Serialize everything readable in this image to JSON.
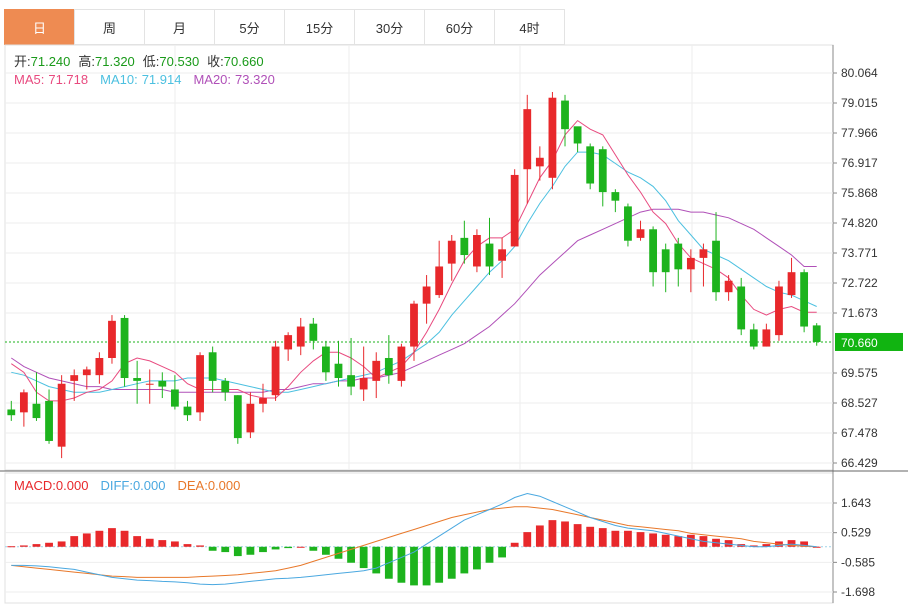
{
  "tabs": [
    "日",
    "周",
    "月",
    "5分",
    "15分",
    "30分",
    "60分",
    "4时"
  ],
  "active_tab": 0,
  "ohlc": {
    "open_label": "开:",
    "open": "71.240",
    "high_label": "高:",
    "high": "71.320",
    "low_label": "低:",
    "low": "70.530",
    "close_label": "收:",
    "close": "70.660"
  },
  "ma": {
    "ma5_label": "MA5:",
    "ma5": "71.718",
    "ma10_label": "MA10:",
    "ma10": "71.914",
    "ma20_label": "MA20:",
    "ma20": "73.320"
  },
  "macd_info": {
    "macd_label": "MACD:",
    "macd": "0.000",
    "diff_label": "DIFF:",
    "diff": "0.000",
    "dea_label": "DEA:",
    "dea": "0.000"
  },
  "colors": {
    "up": "#e8282b",
    "down": "#1db31d",
    "ma5": "#e84a7f",
    "ma10": "#4cc0e0",
    "ma20": "#b050b8",
    "diff": "#4aa8e0",
    "dea": "#e8782a",
    "current_line": "#1db31d",
    "current_label_bg": "#11b411",
    "ohlc_value": "#1a9a1a"
  },
  "chart_data": {
    "type": "candlestick",
    "price_axis_ticks": [
      "80.064",
      "79.015",
      "77.966",
      "76.917",
      "75.868",
      "74.820",
      "73.771",
      "72.722",
      "71.673",
      "70.660",
      "69.575",
      "68.527",
      "67.478",
      "66.429"
    ],
    "current_price": "70.660",
    "price_range": [
      66.429,
      80.064
    ],
    "macd_axis_ticks": [
      "1.643",
      "0.529",
      "-0.585",
      "-1.698"
    ],
    "macd_range": [
      -1.698,
      1.643
    ],
    "candles": [
      [
        68.3,
        68.1,
        68.6,
        67.9
      ],
      [
        68.2,
        68.9,
        69.0,
        67.7
      ],
      [
        68.5,
        68.0,
        69.6,
        67.9
      ],
      [
        68.6,
        67.2,
        69.0,
        67.1
      ],
      [
        67.0,
        69.2,
        69.5,
        66.6
      ],
      [
        69.3,
        69.5,
        69.7,
        68.6
      ],
      [
        69.5,
        69.7,
        69.8,
        69.0
      ],
      [
        69.5,
        70.1,
        70.3,
        69.2
      ],
      [
        70.1,
        71.4,
        71.6,
        69.9
      ],
      [
        71.5,
        69.4,
        71.6,
        69.1
      ],
      [
        69.4,
        69.3,
        70.0,
        68.5
      ],
      [
        69.2,
        69.2,
        69.7,
        68.5
      ],
      [
        69.3,
        69.1,
        69.6,
        68.7
      ],
      [
        69.0,
        68.4,
        69.5,
        68.3
      ],
      [
        68.4,
        68.1,
        68.6,
        67.9
      ],
      [
        68.2,
        70.2,
        70.3,
        67.9
      ],
      [
        70.3,
        69.3,
        70.5,
        68.9
      ],
      [
        69.3,
        68.9,
        69.4,
        68.6
      ],
      [
        68.8,
        67.3,
        68.8,
        67.1
      ],
      [
        67.5,
        68.5,
        68.9,
        67.3
      ],
      [
        68.5,
        68.7,
        69.2,
        68.2
      ],
      [
        68.8,
        70.5,
        70.7,
        68.6
      ],
      [
        70.4,
        70.9,
        71.0,
        70.0
      ],
      [
        70.5,
        71.2,
        71.5,
        70.2
      ],
      [
        71.3,
        70.7,
        71.5,
        70.4
      ],
      [
        70.5,
        69.6,
        70.7,
        69.3
      ],
      [
        69.9,
        69.4,
        70.7,
        69.1
      ],
      [
        69.5,
        69.1,
        70.8,
        68.8
      ],
      [
        69.0,
        69.4,
        70.5,
        68.6
      ],
      [
        69.3,
        70.0,
        70.3,
        68.7
      ],
      [
        70.1,
        69.5,
        70.9,
        69.2
      ],
      [
        69.3,
        70.5,
        70.6,
        69.1
      ],
      [
        70.5,
        72.0,
        72.1,
        70.0
      ],
      [
        72.0,
        72.6,
        73.0,
        71.3
      ],
      [
        72.3,
        73.3,
        74.2,
        72.2
      ],
      [
        73.4,
        74.2,
        74.4,
        72.8
      ],
      [
        74.3,
        73.7,
        74.9,
        73.4
      ],
      [
        73.3,
        74.4,
        74.6,
        73.1
      ],
      [
        74.1,
        73.3,
        75.0,
        73.0
      ],
      [
        73.5,
        73.9,
        74.3,
        72.9
      ],
      [
        74.0,
        76.5,
        76.7,
        74.0
      ],
      [
        76.7,
        78.8,
        79.3,
        75.5
      ],
      [
        76.8,
        77.1,
        77.5,
        76.3
      ],
      [
        76.4,
        79.2,
        79.4,
        76.0
      ],
      [
        79.1,
        78.1,
        79.3,
        77.5
      ],
      [
        78.2,
        77.6,
        78.0,
        77.3
      ],
      [
        77.5,
        76.2,
        77.6,
        76.0
      ],
      [
        77.4,
        75.9,
        77.5,
        75.4
      ],
      [
        75.9,
        75.6,
        76.0,
        75.2
      ],
      [
        75.4,
        74.2,
        75.5,
        74.0
      ],
      [
        74.3,
        74.6,
        74.9,
        74.2
      ],
      [
        74.6,
        73.1,
        74.7,
        72.6
      ],
      [
        73.9,
        73.1,
        74.1,
        72.4
      ],
      [
        74.1,
        73.2,
        74.3,
        72.6
      ],
      [
        73.2,
        73.6,
        73.9,
        72.4
      ],
      [
        73.6,
        73.9,
        74.1,
        72.6
      ],
      [
        74.2,
        72.4,
        75.2,
        72.1
      ],
      [
        72.4,
        72.8,
        73.0,
        72.1
      ],
      [
        72.6,
        71.1,
        72.9,
        70.9
      ],
      [
        71.1,
        70.5,
        71.3,
        70.4
      ],
      [
        70.5,
        71.1,
        71.3,
        70.5
      ],
      [
        70.9,
        72.6,
        72.8,
        70.7
      ],
      [
        72.3,
        73.1,
        73.6,
        72.2
      ],
      [
        73.1,
        71.2,
        73.2,
        71.0
      ],
      [
        71.24,
        70.66,
        71.32,
        70.53
      ]
    ],
    "ma5": [
      69.9,
      69.6,
      68.9,
      68.6,
      68.6,
      68.7,
      68.9,
      69.0,
      69.3,
      69.9,
      70.1,
      70.0,
      69.8,
      69.6,
      69.2,
      69.0,
      69.0,
      69.0,
      69.0,
      68.8,
      68.7,
      68.7,
      69.1,
      69.6,
      70.0,
      70.3,
      70.3,
      70.1,
      69.8,
      69.4,
      69.6,
      69.8,
      70.3,
      71.0,
      71.8,
      72.7,
      73.5,
      74.0,
      74.3,
      74.3,
      74.6,
      75.5,
      76.4,
      77.0,
      77.9,
      78.4,
      78.1,
      77.9,
      77.2,
      76.5,
      75.9,
      75.2,
      74.8,
      74.1,
      73.6,
      73.4,
      73.2,
      72.9,
      72.3,
      71.8,
      71.6,
      71.8,
      71.9,
      71.7,
      71.7
    ],
    "ma10": [
      69.6,
      69.5,
      69.3,
      69.1,
      69.0,
      68.9,
      68.9,
      68.9,
      69.0,
      69.1,
      69.2,
      69.3,
      69.3,
      69.3,
      69.4,
      69.4,
      69.4,
      69.3,
      69.2,
      69.1,
      69.0,
      68.9,
      68.9,
      69.0,
      69.1,
      69.2,
      69.3,
      69.4,
      69.5,
      69.6,
      69.8,
      70.0,
      70.3,
      70.6,
      71.0,
      71.6,
      72.1,
      72.6,
      73.1,
      73.5,
      74.0,
      74.8,
      75.5,
      76.1,
      76.8,
      77.3,
      77.3,
      77.2,
      76.9,
      76.6,
      76.4,
      76.1,
      75.6,
      74.9,
      74.4,
      73.9,
      73.7,
      73.5,
      73.2,
      72.9,
      72.6,
      72.4,
      72.3,
      72.1,
      71.9
    ],
    "ma20": [
      70.1,
      69.8,
      69.6,
      69.4,
      69.3,
      69.2,
      69.1,
      69.1,
      69.0,
      69.0,
      69.0,
      69.0,
      69.0,
      68.9,
      68.9,
      68.9,
      68.9,
      68.9,
      68.9,
      68.9,
      68.9,
      69.0,
      69.0,
      69.1,
      69.2,
      69.2,
      69.3,
      69.3,
      69.4,
      69.4,
      69.5,
      69.6,
      69.8,
      70.0,
      70.2,
      70.4,
      70.6,
      70.9,
      71.2,
      71.6,
      72.0,
      72.5,
      73.0,
      73.4,
      73.8,
      74.2,
      74.4,
      74.6,
      74.8,
      75.0,
      75.2,
      75.3,
      75.3,
      75.3,
      75.2,
      75.2,
      75.1,
      75.0,
      74.8,
      74.6,
      74.3,
      74.0,
      73.7,
      73.3,
      73.3
    ],
    "macd_hist": [
      0.02,
      0.05,
      0.1,
      0.15,
      0.2,
      0.4,
      0.5,
      0.6,
      0.7,
      0.6,
      0.4,
      0.3,
      0.25,
      0.2,
      0.1,
      0.05,
      -0.15,
      -0.2,
      -0.35,
      -0.3,
      -0.2,
      -0.1,
      -0.05,
      0.0,
      -0.15,
      -0.3,
      -0.45,
      -0.6,
      -0.8,
      -1.0,
      -1.2,
      -1.35,
      -1.45,
      -1.45,
      -1.35,
      -1.2,
      -1.0,
      -0.85,
      -0.6,
      -0.4,
      0.15,
      0.55,
      0.8,
      1.0,
      0.95,
      0.85,
      0.75,
      0.7,
      0.6,
      0.6,
      0.55,
      0.5,
      0.45,
      0.4,
      0.45,
      0.4,
      0.3,
      0.25,
      0.1,
      0.05,
      0.1,
      0.2,
      0.25,
      0.2,
      0.0
    ],
    "diff": [
      -0.7,
      -0.7,
      -0.72,
      -0.75,
      -0.8,
      -0.85,
      -0.95,
      -1.05,
      -1.15,
      -1.2,
      -1.25,
      -1.27,
      -1.3,
      -1.32,
      -1.35,
      -1.4,
      -1.42,
      -1.4,
      -1.35,
      -1.3,
      -1.25,
      -1.2,
      -1.18,
      -1.15,
      -1.1,
      -1.05,
      -1.0,
      -0.95,
      -0.9,
      -0.8,
      -0.6,
      -0.4,
      -0.2,
      0.1,
      0.4,
      0.7,
      1.0,
      1.2,
      1.4,
      1.6,
      1.85,
      2.0,
      1.9,
      1.7,
      1.5,
      1.3,
      1.1,
      0.95,
      0.8,
      0.7,
      0.65,
      0.6,
      0.5,
      0.4,
      0.3,
      0.2,
      0.15,
      0.1,
      0.05,
      0.0,
      0.0,
      0.05,
      0.1,
      0.05,
      0.0
    ],
    "dea": [
      -0.7,
      -0.75,
      -0.8,
      -0.85,
      -0.9,
      -0.95,
      -1.0,
      -1.05,
      -1.1,
      -1.12,
      -1.15,
      -1.15,
      -1.15,
      -1.15,
      -1.15,
      -1.12,
      -1.1,
      -1.08,
      -1.05,
      -1.0,
      -0.95,
      -0.9,
      -0.8,
      -0.7,
      -0.55,
      -0.4,
      -0.25,
      -0.1,
      0.05,
      0.2,
      0.35,
      0.5,
      0.65,
      0.8,
      0.95,
      1.1,
      1.2,
      1.3,
      1.4,
      1.45,
      1.5,
      1.5,
      1.45,
      1.4,
      1.3,
      1.2,
      1.1,
      1.0,
      0.9,
      0.8,
      0.75,
      0.7,
      0.65,
      0.6,
      0.5,
      0.45,
      0.4,
      0.35,
      0.3,
      0.2,
      0.15,
      0.1,
      0.05,
      0.02,
      0.0
    ]
  }
}
